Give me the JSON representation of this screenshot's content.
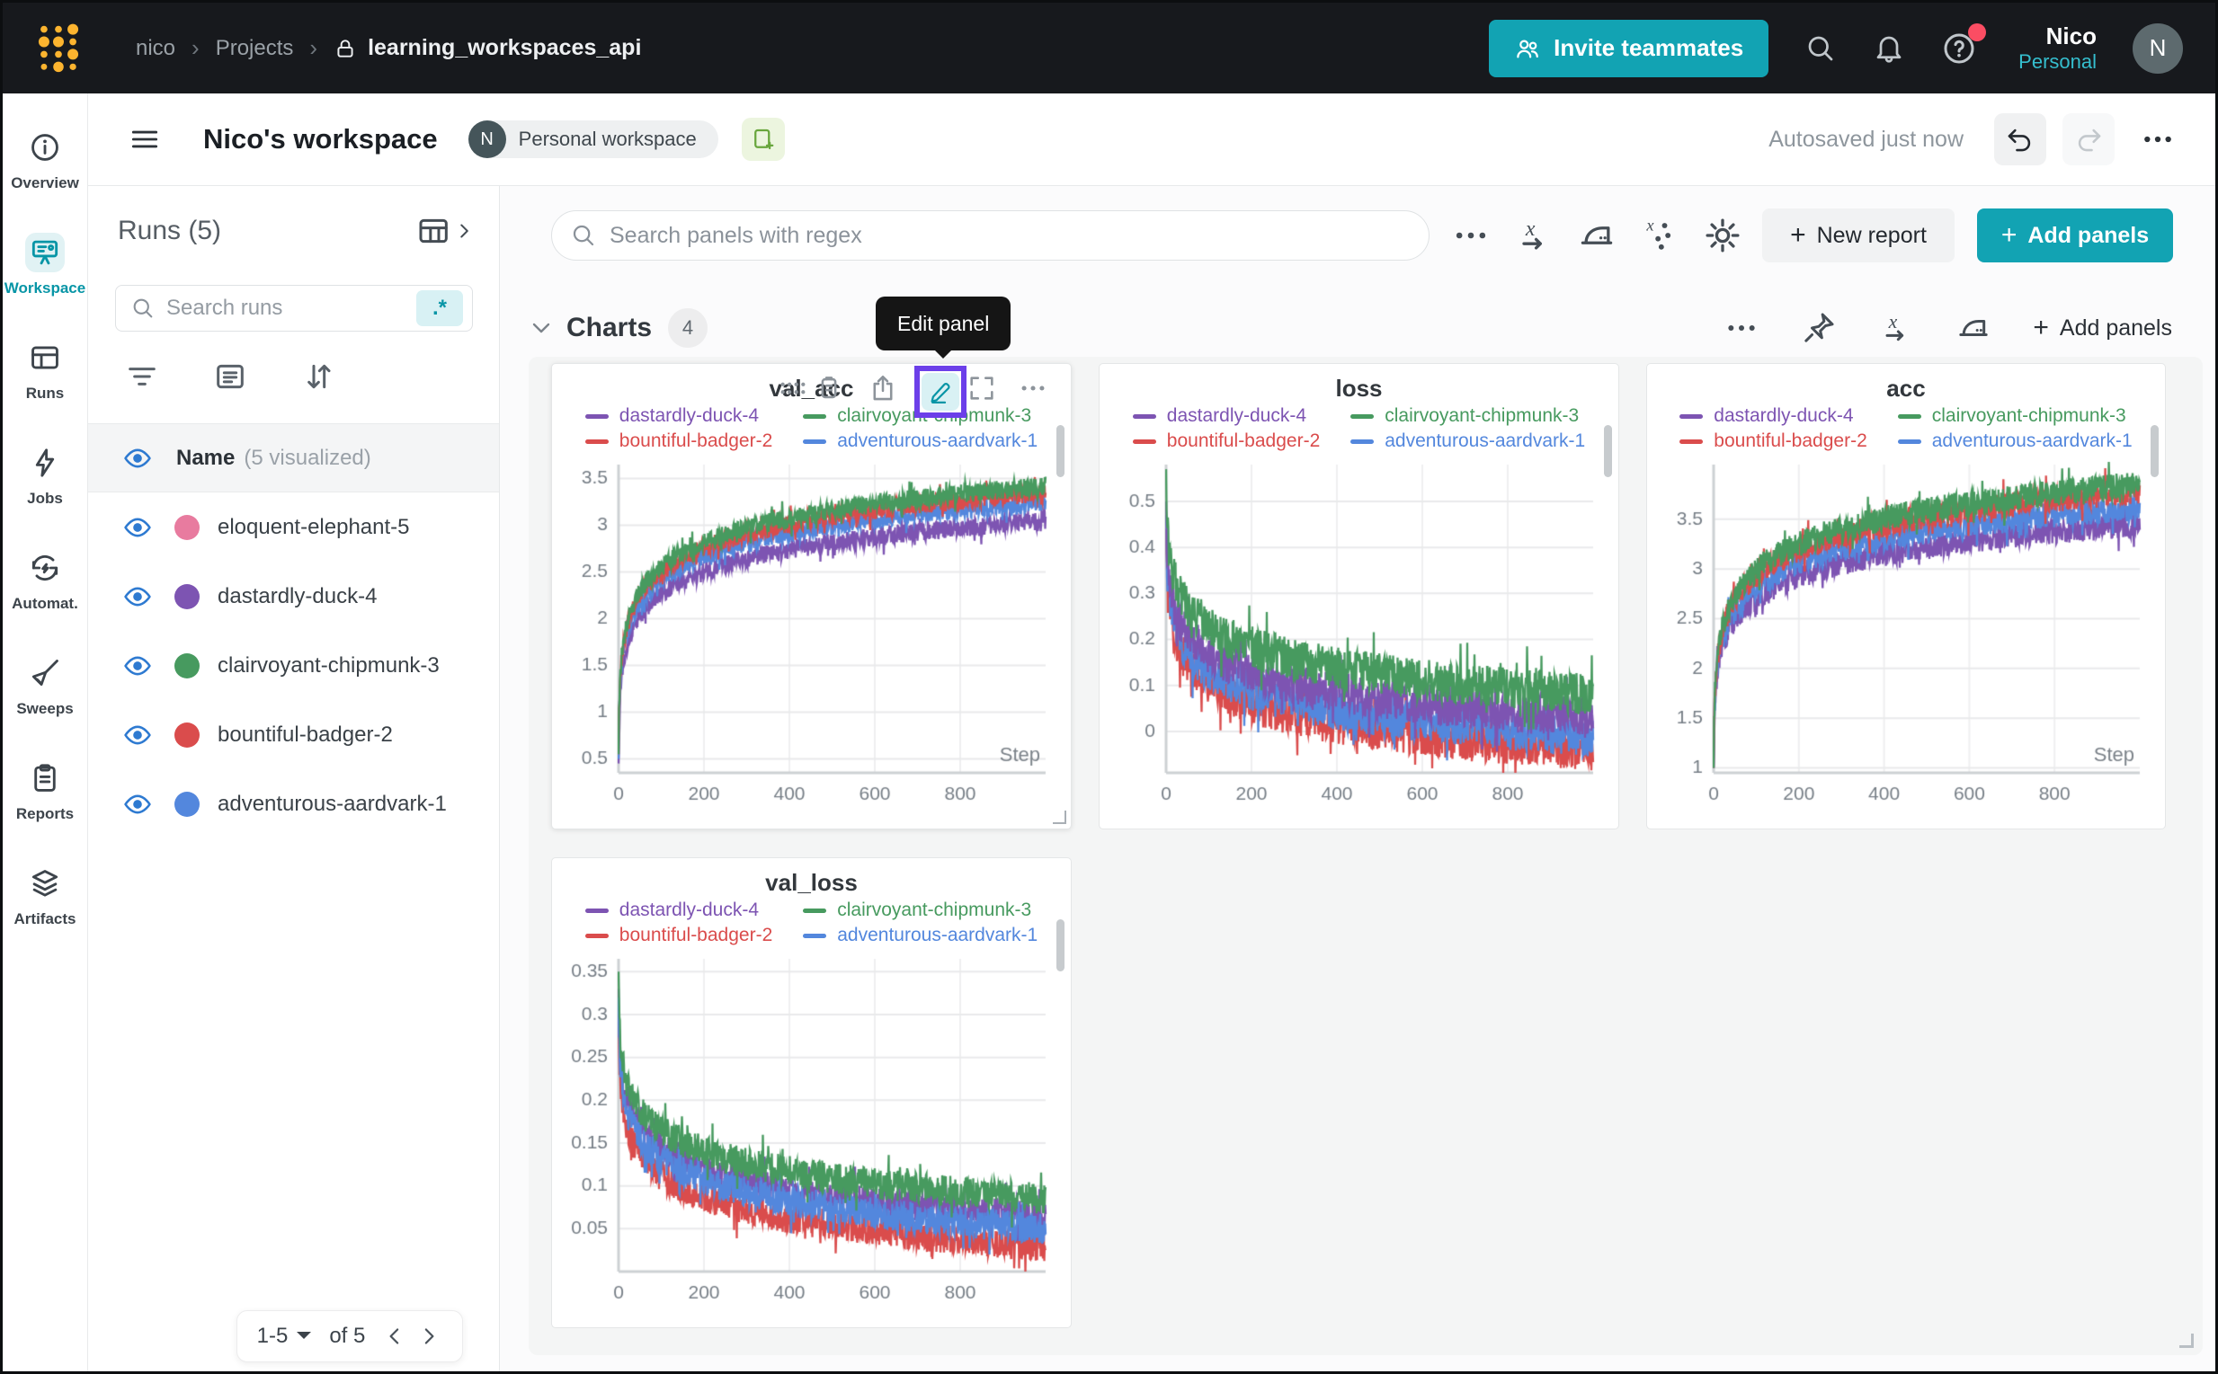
{
  "colors": {
    "accent_teal": "#12a3b3",
    "teal_dark": "#0795a6",
    "highlight_purple": "#6c3fe9",
    "brand_gold": "#fcb42f",
    "notification_red": "#fb4d63",
    "eye_blue": "#2e7ad1"
  },
  "topbar": {
    "breadcrumb": {
      "user": "nico",
      "section": "Projects",
      "project": "learning_workspaces_api"
    },
    "invite_button": "Invite teammates",
    "user_name": "Nico",
    "user_scope": "Personal",
    "avatar_initial": "N"
  },
  "nav_rail": {
    "items": [
      {
        "label": "Overview",
        "icon": "info",
        "active": false
      },
      {
        "label": "Workspace",
        "icon": "workspace",
        "active": true
      },
      {
        "label": "Runs",
        "icon": "runs",
        "active": false
      },
      {
        "label": "Jobs",
        "icon": "jobs",
        "active": false
      },
      {
        "label": "Automat.",
        "icon": "automations",
        "active": false
      },
      {
        "label": "Sweeps",
        "icon": "sweeps",
        "active": false
      },
      {
        "label": "Reports",
        "icon": "reports",
        "active": false
      },
      {
        "label": "Artifacts",
        "icon": "artifacts",
        "active": false
      }
    ]
  },
  "workspace_header": {
    "title": "Nico's workspace",
    "badge_initial": "N",
    "badge_label": "Personal workspace",
    "autosave_status": "Autosaved just now"
  },
  "runs_panel": {
    "title": "Runs (5)",
    "search_placeholder": "Search runs",
    "regex_chip": ".*",
    "header": {
      "label": "Name",
      "sub": "(5 visualized)"
    },
    "runs": [
      {
        "name": "eloquent-elephant-5",
        "color": "#E87B9F",
        "visible": true
      },
      {
        "name": "dastardly-duck-4",
        "color": "#7D54B2",
        "visible": true
      },
      {
        "name": "clairvoyant-chipmunk-3",
        "color": "#479A5F",
        "visible": true
      },
      {
        "name": "bountiful-badger-2",
        "color": "#DA4C4C",
        "visible": true
      },
      {
        "name": "adventurous-aardvark-1",
        "color": "#5387DD",
        "visible": true
      }
    ],
    "pagination": {
      "range": "1-5",
      "of": "of 5"
    }
  },
  "panels_toolbar": {
    "search_placeholder": "Search panels with regex",
    "new_report": "New report",
    "add_panels": "Add panels"
  },
  "charts_section": {
    "title": "Charts",
    "count": "4",
    "add_panels_label": "Add panels",
    "tooltip": "Edit panel"
  },
  "chart_data": [
    {
      "type": "line",
      "title": "val_acc",
      "xlabel": "Step",
      "xlim": [
        0,
        1000
      ],
      "x_ticks": [
        0,
        200,
        400,
        600,
        800
      ],
      "ylim": [
        0.35,
        3.65
      ],
      "y_ticks": [
        0.5,
        1,
        1.5,
        2,
        2.5,
        3,
        3.5
      ],
      "grid": true,
      "legend_position": "top",
      "noise": 0.1,
      "series": [
        {
          "name": "dastardly-duck-4",
          "color": "#7D54B2",
          "shape": "rise",
          "start": 0.45,
          "end": 3.05,
          "z": 1
        },
        {
          "name": "clairvoyant-chipmunk-3",
          "color": "#479A5F",
          "shape": "rise",
          "start": 0.55,
          "end": 3.42,
          "z": 4
        },
        {
          "name": "bountiful-badger-2",
          "color": "#DA4C4C",
          "shape": "rise",
          "start": 0.55,
          "end": 3.35,
          "z": 3
        },
        {
          "name": "adventurous-aardvark-1",
          "color": "#5387DD",
          "shape": "rise",
          "start": 0.5,
          "end": 3.25,
          "z": 2
        }
      ]
    },
    {
      "type": "line",
      "title": "loss",
      "xlabel": "",
      "xlim": [
        0,
        1000
      ],
      "x_ticks": [
        0,
        200,
        400,
        600,
        800
      ],
      "ylim": [
        -0.09,
        0.58
      ],
      "y_ticks": [
        0,
        0.1,
        0.2,
        0.3,
        0.4,
        0.5
      ],
      "grid": true,
      "legend_position": "top",
      "noise": 0.045,
      "series": [
        {
          "name": "dastardly-duck-4",
          "color": "#7D54B2",
          "shape": "decay",
          "start": 0.5,
          "end": 0.03,
          "z": 3
        },
        {
          "name": "clairvoyant-chipmunk-3",
          "color": "#479A5F",
          "shape": "decay",
          "start": 0.57,
          "end": 0.08,
          "z": 4
        },
        {
          "name": "bountiful-badger-2",
          "color": "#DA4C4C",
          "shape": "decay",
          "start": 0.44,
          "end": -0.04,
          "z": 1
        },
        {
          "name": "adventurous-aardvark-1",
          "color": "#5387DD",
          "shape": "decay",
          "start": 0.47,
          "end": -0.01,
          "z": 2
        }
      ]
    },
    {
      "type": "line",
      "title": "acc",
      "xlabel": "Step",
      "xlim": [
        0,
        1000
      ],
      "x_ticks": [
        0,
        200,
        400,
        600,
        800
      ],
      "ylim": [
        0.95,
        4.05
      ],
      "y_ticks": [
        1,
        1.5,
        2,
        2.5,
        3,
        3.5
      ],
      "grid": true,
      "legend_position": "top",
      "noise": 0.13,
      "series": [
        {
          "name": "dastardly-duck-4",
          "color": "#7D54B2",
          "shape": "rise",
          "start": 1.0,
          "end": 3.45,
          "z": 1
        },
        {
          "name": "clairvoyant-chipmunk-3",
          "color": "#479A5F",
          "shape": "rise",
          "start": 1.0,
          "end": 3.85,
          "z": 4
        },
        {
          "name": "bountiful-badger-2",
          "color": "#DA4C4C",
          "shape": "rise",
          "start": 1.0,
          "end": 3.78,
          "z": 3
        },
        {
          "name": "adventurous-aardvark-1",
          "color": "#5387DD",
          "shape": "rise",
          "start": 1.0,
          "end": 3.62,
          "z": 2
        }
      ]
    },
    {
      "type": "line",
      "title": "val_loss",
      "xlabel": "",
      "xlim": [
        0,
        1000
      ],
      "x_ticks": [
        0,
        200,
        400,
        600,
        800
      ],
      "ylim": [
        0.0,
        0.365
      ],
      "y_ticks": [
        0.05,
        0.1,
        0.15,
        0.2,
        0.25,
        0.3,
        0.35
      ],
      "grid": true,
      "legend_position": "top",
      "noise": 0.018,
      "series": [
        {
          "name": "dastardly-duck-4",
          "color": "#7D54B2",
          "shape": "decay",
          "start": 0.33,
          "end": 0.065,
          "z": 2
        },
        {
          "name": "clairvoyant-chipmunk-3",
          "color": "#479A5F",
          "shape": "decay",
          "start": 0.35,
          "end": 0.085,
          "z": 4
        },
        {
          "name": "bountiful-badger-2",
          "color": "#DA4C4C",
          "shape": "decay",
          "start": 0.3,
          "end": 0.03,
          "z": 1
        },
        {
          "name": "adventurous-aardvark-1",
          "color": "#5387DD",
          "shape": "decay",
          "start": 0.32,
          "end": 0.05,
          "z": 3
        }
      ]
    }
  ]
}
